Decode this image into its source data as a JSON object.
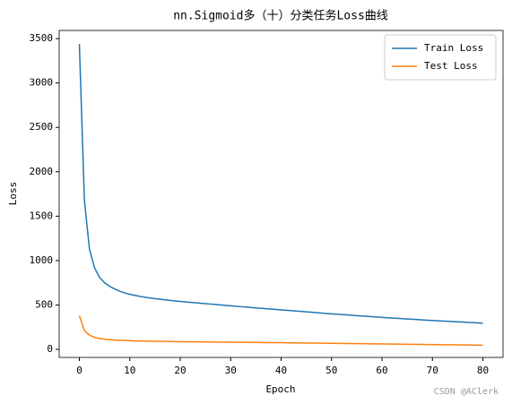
{
  "chart_data": {
    "type": "line",
    "title": "nn.Sigmoid多（十）分类任务Loss曲线",
    "xlabel": "Epoch",
    "ylabel": "Loss",
    "x": [
      0,
      1,
      2,
      3,
      4,
      5,
      6,
      7,
      8,
      9,
      10,
      11,
      12,
      13,
      14,
      15,
      16,
      17,
      18,
      19,
      20,
      21,
      22,
      23,
      24,
      25,
      26,
      27,
      28,
      29,
      30,
      31,
      32,
      33,
      34,
      35,
      36,
      37,
      38,
      39,
      40,
      41,
      42,
      43,
      44,
      45,
      46,
      47,
      48,
      49,
      50,
      51,
      52,
      53,
      54,
      55,
      56,
      57,
      58,
      59,
      60,
      61,
      62,
      63,
      64,
      65,
      66,
      67,
      68,
      69,
      70,
      71,
      72,
      73,
      74,
      75,
      76,
      77,
      78,
      79,
      80
    ],
    "series": [
      {
        "name": "Train Loss",
        "color": "#1f77b4",
        "values": [
          3440,
          1680,
          1130,
          920,
          810,
          750,
          710,
          680,
          655,
          635,
          620,
          608,
          597,
          588,
          579,
          571,
          564,
          557,
          551,
          545,
          540,
          535,
          530,
          525,
          520,
          515,
          510,
          505,
          500,
          495,
          490,
          485,
          481,
          476,
          472,
          467,
          463,
          458,
          454,
          449,
          445,
          440,
          436,
          431,
          427,
          422,
          418,
          413,
          409,
          404,
          400,
          396,
          392,
          388,
          384,
          380,
          376,
          372,
          368,
          364,
          360,
          356,
          353,
          349,
          346,
          342,
          339,
          335,
          332,
          328,
          325,
          322,
          319,
          316,
          313,
          310,
          307,
          304,
          301,
          298,
          295
        ]
      },
      {
        "name": "Test Loss",
        "color": "#ff7f0e",
        "values": [
          380,
          210,
          160,
          135,
          122,
          115,
          110,
          105,
          102,
          100,
          98,
          96,
          94,
          93,
          92,
          91,
          90,
          89,
          88,
          87,
          86,
          85,
          85,
          84,
          84,
          83,
          83,
          82,
          82,
          81,
          80,
          80,
          79,
          79,
          78,
          78,
          77,
          76,
          76,
          75,
          75,
          74,
          73,
          73,
          72,
          71,
          71,
          70,
          69,
          69,
          68,
          67,
          67,
          66,
          65,
          64,
          64,
          63,
          62,
          62,
          61,
          60,
          59,
          59,
          58,
          57,
          56,
          56,
          55,
          54,
          54,
          53,
          52,
          52,
          51,
          50,
          50,
          49,
          48,
          47,
          47
        ]
      }
    ],
    "xlim": [
      -4,
      84
    ],
    "xticks": [
      0,
      10,
      20,
      30,
      40,
      50,
      60,
      70,
      80
    ],
    "ylim": [
      -91,
      3592
    ],
    "yticks": [
      0,
      500,
      1000,
      1500,
      2000,
      2500,
      3000,
      3500
    ],
    "legend": "upper right",
    "grid": false,
    "watermark": "CSDN @AClerk"
  }
}
